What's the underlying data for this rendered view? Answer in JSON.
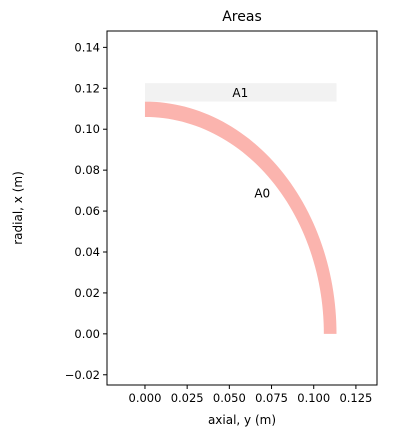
{
  "chart_data": {
    "type": "area",
    "title": "Areas",
    "xlabel": "axial, y (m)",
    "ylabel": "radial, x (m)",
    "xlim": [
      -0.0225,
      0.1375
    ],
    "ylim": [
      -0.025,
      0.148
    ],
    "xticks": [
      0.0,
      0.025,
      0.05,
      0.075,
      0.1,
      0.125
    ],
    "xtick_labels": [
      "0.000",
      "0.025",
      "0.050",
      "0.075",
      "0.100",
      "0.125"
    ],
    "yticks": [
      -0.02,
      0.0,
      0.02,
      0.04,
      0.06,
      0.08,
      0.1,
      0.12,
      0.14
    ],
    "ytick_labels": [
      "−0.02",
      "0.00",
      "0.02",
      "0.04",
      "0.06",
      "0.08",
      "0.10",
      "0.12",
      "0.14"
    ],
    "grid": false,
    "legend": "none",
    "regions": [
      {
        "name": "A0",
        "shape": "annular-quarter",
        "inner_radius": 0.106,
        "outer_radius": 0.1135,
        "angle_range_deg": [
          0,
          90
        ],
        "color": "#fbb4ae"
      },
      {
        "name": "A1",
        "shape": "rectangle",
        "x_range": [
          0.0,
          0.1135
        ],
        "y_range": [
          0.1135,
          0.1225
        ],
        "color": "#f2f2f2"
      }
    ],
    "annotations": [
      {
        "text": "A0",
        "x": 0.0695,
        "y": 0.0685
      },
      {
        "text": "A1",
        "x": 0.0565,
        "y": 0.1178
      }
    ]
  }
}
